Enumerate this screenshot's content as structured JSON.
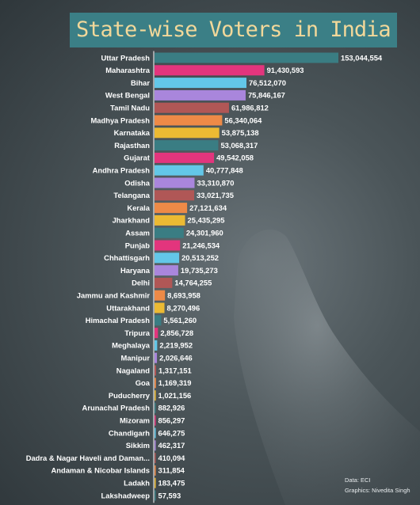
{
  "title": "State-wise Voters in India",
  "source": "Data: ECI",
  "credit": "Graphics: Nivedita Singh",
  "colors": [
    "#3a7d83",
    "#e3357d",
    "#63c7e8",
    "#a986dc",
    "#b05756",
    "#ee8a47",
    "#ecba33"
  ],
  "chart_data": {
    "type": "bar",
    "orientation": "horizontal",
    "title": "State-wise Voters in India",
    "xlim": [
      0,
      153044554
    ],
    "categories": [
      "Uttar Pradesh",
      "Maharashtra",
      "Bihar",
      "West Bengal",
      "Tamil Nadu",
      "Madhya Pradesh",
      "Karnataka",
      "Rajasthan",
      "Gujarat",
      "Andhra Pradesh",
      "Odisha",
      "Telangana",
      "Kerala",
      "Jharkhand",
      "Assam",
      "Punjab",
      "Chhattisgarh",
      "Haryana",
      "Delhi",
      "Jammu and Kashmir",
      "Uttarakhand",
      "Himachal Pradesh",
      "Tripura",
      "Meghalaya",
      "Manipur",
      "Nagaland",
      "Goa",
      "Puducherry",
      "Arunachal Pradesh",
      "Mizoram",
      "Chandigarh",
      "Sikkim",
      "Dadra & Nagar Haveli and Daman...",
      "Andaman & Nicobar Islands",
      "Ladakh",
      "Lakshadweep"
    ],
    "values": [
      153044554,
      91430593,
      76512070,
      75846167,
      61986812,
      56340064,
      53875138,
      53068317,
      49542058,
      40777848,
      33310870,
      33021735,
      27121634,
      25435295,
      24301960,
      21246534,
      20513252,
      19735273,
      14764255,
      8693958,
      8270496,
      5561260,
      2856728,
      2219952,
      2026646,
      1317151,
      1169319,
      1021156,
      882926,
      856297,
      646275,
      462317,
      410094,
      311854,
      183475,
      57593
    ],
    "value_labels": [
      "153,044,554",
      "91,430,593",
      "76,512,070",
      "75,846,167",
      "61,986,812",
      "56,340,064",
      "53,875,138",
      "53,068,317",
      "49,542,058",
      "40,777,848",
      "33,310,870",
      "33,021,735",
      "27,121,634",
      "25,435,295",
      "24,301,960",
      "21,246,534",
      "20,513,252",
      "19,735,273",
      "14,764,255",
      "8,693,958",
      "8,270,496",
      "5,561,260",
      "2,856,728",
      "2,219,952",
      "2,026,646",
      "1,317,151",
      "1,169,319",
      "1,021,156",
      "882,926",
      "856,297",
      "646,275",
      "462,317",
      "410,094",
      "311,854",
      "183,475",
      "57,593"
    ]
  }
}
